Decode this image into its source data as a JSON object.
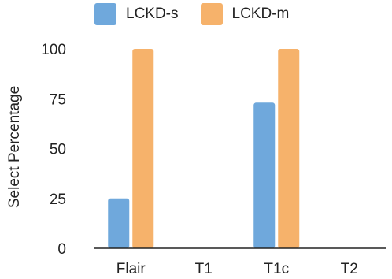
{
  "chart_data": {
    "type": "bar",
    "categories": [
      "Flair",
      "T1",
      "T1c",
      "T2"
    ],
    "series": [
      {
        "name": "LCKD-s",
        "values": [
          25,
          0,
          73,
          0
        ],
        "color": "#6fa8dc"
      },
      {
        "name": "LCKD-m",
        "values": [
          100,
          0,
          100,
          0
        ],
        "color": "#f6b26b"
      }
    ],
    "ylabel": "Select Percentage",
    "ylim": [
      0,
      100
    ],
    "yticks": [
      "0",
      "25",
      "50",
      "75",
      "100"
    ],
    "grid": false,
    "legend": "top"
  }
}
